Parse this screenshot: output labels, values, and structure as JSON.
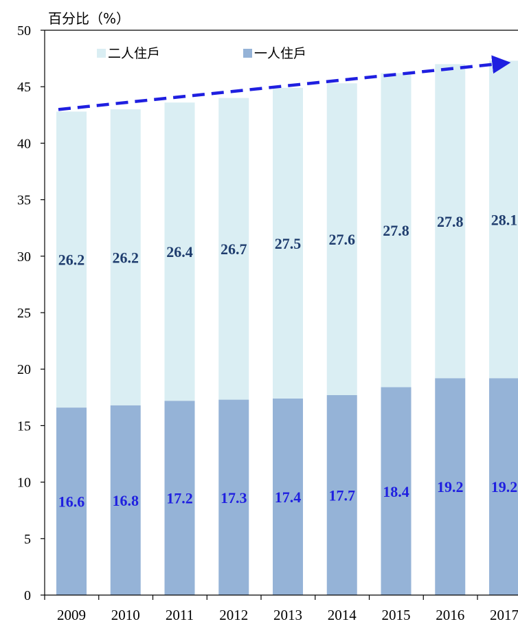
{
  "chart_data": {
    "type": "bar",
    "stacked": true,
    "title": "",
    "ylabel": "百分比（%）",
    "xlabel": "",
    "ylim": [
      0,
      50
    ],
    "yticks": [
      0,
      5,
      10,
      15,
      20,
      25,
      30,
      35,
      40,
      45,
      50
    ],
    "categories": [
      "2009",
      "2010",
      "2011",
      "2012",
      "2013",
      "2014",
      "2015",
      "2016",
      "2017"
    ],
    "series": [
      {
        "name": "一人住戶",
        "color": "#95b3d7",
        "label_color": "#1f1fe0",
        "values": [
          16.6,
          16.8,
          17.2,
          17.3,
          17.4,
          17.7,
          18.4,
          19.2,
          19.2
        ]
      },
      {
        "name": "二人住戶",
        "color": "#daeef3",
        "label_color": "#1f3d6e",
        "values": [
          26.2,
          26.2,
          26.4,
          26.7,
          27.5,
          27.6,
          27.8,
          27.8,
          28.1
        ]
      }
    ],
    "legend": {
      "placement": "top-left",
      "order": [
        "二人住戶",
        "一人住戶"
      ]
    },
    "trend_arrow": {
      "color": "#1f1fe0",
      "style": "dashed"
    },
    "grid": false
  }
}
